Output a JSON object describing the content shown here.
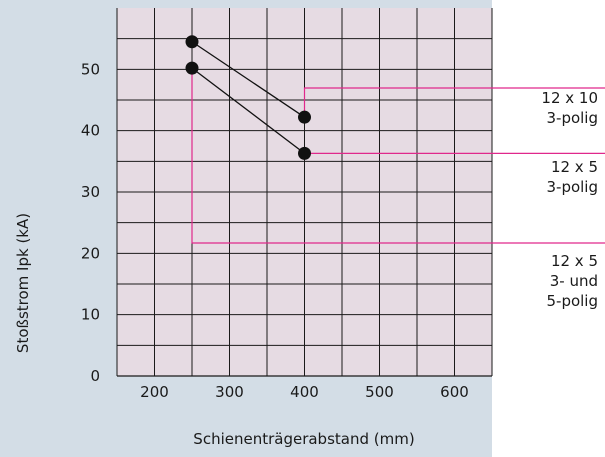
{
  "chart_data": {
    "type": "line",
    "title": "",
    "xlabel": "Schienenträgerabstand (mm)",
    "ylabel": "Stoßstrom Ipk (kA)",
    "xlim": [
      150,
      650
    ],
    "ylim": [
      0,
      60
    ],
    "x_ticks": [
      200,
      300,
      400,
      500,
      600
    ],
    "y_ticks": [
      0,
      10,
      20,
      30,
      40,
      50
    ],
    "grid": true,
    "series": [
      {
        "name": "12 x 10 3-polig",
        "x": [
          250,
          400
        ],
        "y": [
          54.5,
          42.2
        ]
      },
      {
        "name": "12 x 5 3-polig",
        "x": [
          250,
          400
        ],
        "y": [
          50.2,
          36.3
        ]
      }
    ],
    "annotations": [
      {
        "lines": [
          "12 x 10",
          "3-polig"
        ]
      },
      {
        "lines": [
          "12 x 5",
          "3-polig"
        ]
      },
      {
        "lines": [
          "12 x 5",
          "3- und",
          "5-polig"
        ]
      }
    ],
    "colors": {
      "plot_background": "#e6dbe3",
      "frame_background": "#d3dde6",
      "grid": "#1a1a1a",
      "series": "#111111",
      "leader": "#e0288c"
    }
  }
}
